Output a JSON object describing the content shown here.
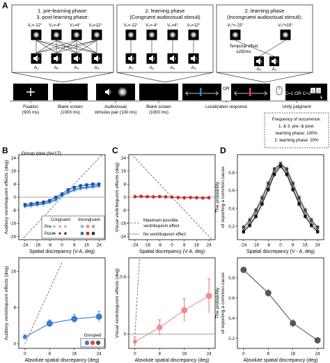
{
  "panel_a": {
    "letter": "A",
    "box1": {
      "title_lines": [
        "1. pre-learning phase:",
        "3. post-learning phase:"
      ],
      "v_labels": [
        "V₁=-12°",
        "V₂=-4°",
        "V₃=4°",
        "V₄=12°"
      ],
      "a_labels": [
        "A₁",
        "A₂",
        "A₃",
        "A₄"
      ]
    },
    "box2": {
      "title_lines": [
        "2. learning phase",
        "(Congruent audiovisual stimuli)"
      ],
      "v_labels": [
        "V₁=-12°",
        "V₂=-4°",
        "V₃=4°",
        "V₄=12°"
      ],
      "a_labels": [
        "A₁",
        "A₂",
        "A₃",
        "A₄"
      ]
    },
    "box3": {
      "title_lines": [
        "2. learning phase",
        "(Incongruent audiovisual stimuli):"
      ],
      "v_labels": [
        "V₁*=-15°",
        "V₄*=15°"
      ],
      "offset_lines": [
        "Temporal offset",
        "±250ms"
      ],
      "a_labels": [
        "A₂",
        "A₃"
      ]
    },
    "timeline": {
      "or_label": "OR",
      "unity_options": "C=1 OR C=2",
      "key_labels": [
        "1",
        "2"
      ],
      "steps": [
        {
          "lines": [
            "Fixation",
            "(500 ms)"
          ]
        },
        {
          "lines": [
            "Blank screen",
            "(1000 ms)"
          ]
        },
        {
          "lines": [
            "Audiovisual",
            "stimulus pair (100 ms)"
          ]
        },
        {
          "lines": [
            "Blank screen",
            "(1000 ms)"
          ]
        },
        {
          "lines": [
            "Localization response"
          ]
        },
        {
          "lines": [
            "Unity judgment"
          ]
        }
      ],
      "freq_lines": [
        "Frequency of occurrence:",
        "1. & 3. pre- & post-",
        "learning phase: 100%",
        "2. learning phase: 20%"
      ]
    }
  },
  "panel_b": {
    "letter": "B",
    "group_label": "Group data (N=17)",
    "legend": {
      "congruent": "Congruent",
      "incongruent": "Incongruent",
      "pre": "Pre-",
      "post": "Post-"
    },
    "grouped_label": "Grouped"
  },
  "panel_c": {
    "letter": "C",
    "legend_lines": [
      "Maximum possible",
      "ventriloquism effect",
      "No ventriloquism effect"
    ]
  },
  "panel_d": {
    "letter": "D"
  },
  "colors": {
    "blue": "#3a7bd5",
    "red": "#e8474c",
    "gray": "#555555",
    "black": "#111111"
  },
  "chart_data": [
    {
      "id": "B-top",
      "type": "line",
      "xlabel": "Spatial discrepancy (V-A, deg)",
      "ylabel": "Auditory ventriloquism effects (deg)",
      "xlim": [
        -28,
        28
      ],
      "ylim": [
        -26,
        26
      ],
      "x_ticks": [
        "-24",
        "-16",
        "-8",
        "0",
        "8",
        "16",
        "24"
      ],
      "y_ticks": [
        "24",
        "16",
        "8",
        "0",
        "-8",
        "-16",
        "-24"
      ],
      "x": [
        -24,
        -20,
        -16,
        -12,
        -8,
        -4,
        0,
        4,
        8,
        12,
        16,
        20,
        24
      ],
      "series": [
        {
          "values": [
            -6,
            -5.5,
            -5,
            -4.5,
            -3.5,
            -2,
            0.5,
            2.5,
            4,
            5,
            5.5,
            6,
            6.5
          ]
        },
        {
          "values": [
            -5,
            -4.5,
            -4,
            -3.5,
            -2.5,
            -1,
            1,
            3.5,
            5,
            6,
            6.5,
            7,
            7.5
          ]
        },
        {
          "values": [
            -5.5,
            -5,
            -4.5,
            -4,
            -3,
            -1.5,
            1,
            3,
            4.5,
            5.5,
            6,
            6.5,
            7
          ]
        },
        {
          "values": [
            -4.5,
            -4,
            -3.5,
            -3,
            -2,
            0,
            2,
            4.5,
            6,
            7,
            7.5,
            8,
            8
          ]
        }
      ]
    },
    {
      "id": "B-bottom",
      "type": "line",
      "xlabel": "Absolute spatial discrepancy (deg)",
      "ylabel": "Auditory ventriloquism effects (deg)",
      "xlim": [
        -2,
        26
      ],
      "ylim": [
        -1,
        19
      ],
      "x_ticks": [
        "0",
        "8",
        "16",
        "24"
      ],
      "y_ticks": [
        "16",
        "8",
        "0"
      ],
      "x": [
        0,
        8,
        16,
        24
      ],
      "values": [
        1.5,
        4.5,
        5.5,
        6
      ],
      "errors": [
        0.5,
        0.8,
        1.0,
        1.2
      ]
    },
    {
      "id": "C-top",
      "type": "line",
      "xlabel": "Spatial discrepancy (V-A, deg)",
      "ylabel": "Visual ventriloquism effects (deg)",
      "xlim": [
        -28,
        28
      ],
      "ylim": [
        -26,
        26
      ],
      "x_ticks": [
        "-24",
        "-16",
        "-8",
        "0",
        "8",
        "16",
        "24"
      ],
      "y_ticks": [
        "24",
        "16",
        "8",
        "0",
        "-8",
        "-16",
        "-24"
      ],
      "x": [
        -24,
        -20,
        -16,
        -12,
        -8,
        -4,
        0,
        4,
        8,
        12,
        16,
        20,
        24
      ],
      "series": [
        {
          "values": [
            0.5,
            0.3,
            0.5,
            0.3,
            0.2,
            0.3,
            0,
            -0.3,
            -0.2,
            -0.3,
            -0.5,
            -0.3,
            -0.5
          ]
        },
        {
          "values": [
            0.3,
            0.5,
            0.3,
            0.2,
            0.4,
            0.2,
            0,
            -0.2,
            -0.4,
            -0.2,
            -0.3,
            -0.5,
            -0.3
          ]
        }
      ]
    },
    {
      "id": "C-bottom",
      "type": "line",
      "xlabel": "Absolute spatial discrepancy (deg)",
      "ylabel": "Visual ventriloquism effects (deg)",
      "xlim": [
        -2,
        26
      ],
      "ylim": [
        -0.15,
        0.8
      ],
      "x_ticks": [
        "0",
        "8",
        "16",
        "24"
      ],
      "y_ticks": [
        "0.6",
        "0"
      ],
      "x": [
        0,
        8,
        16,
        24
      ],
      "values": [
        -0.08,
        0.07,
        0.25,
        0.4
      ],
      "errors": [
        0.05,
        0.08,
        0.12,
        0.18
      ]
    },
    {
      "id": "D-top",
      "type": "line",
      "xlabel": "Spatial discrepancy (V - A, deg)",
      "ylabel": "The probability of reporting a common cause",
      "xlim": [
        -28,
        28
      ],
      "ylim": [
        0.05,
        1.0
      ],
      "x_ticks": [
        "-24",
        "-16",
        "-8",
        "0",
        "8",
        "16",
        "24"
      ],
      "y_ticks": [
        "0.8",
        "0.6",
        "0.4",
        "0.2"
      ],
      "x": [
        -24,
        -20,
        -16,
        -12,
        -8,
        -4,
        0,
        4,
        8,
        12,
        16,
        20,
        24
      ],
      "series": [
        {
          "values": [
            0.15,
            0.22,
            0.33,
            0.47,
            0.63,
            0.8,
            0.88,
            0.8,
            0.63,
            0.47,
            0.33,
            0.22,
            0.15
          ]
        },
        {
          "values": [
            0.17,
            0.25,
            0.36,
            0.5,
            0.66,
            0.82,
            0.89,
            0.82,
            0.66,
            0.5,
            0.36,
            0.25,
            0.17
          ]
        },
        {
          "values": [
            0.19,
            0.27,
            0.38,
            0.52,
            0.68,
            0.84,
            0.9,
            0.84,
            0.68,
            0.52,
            0.38,
            0.27,
            0.19
          ]
        },
        {
          "values": [
            0.14,
            0.21,
            0.31,
            0.45,
            0.61,
            0.78,
            0.87,
            0.78,
            0.61,
            0.45,
            0.31,
            0.21,
            0.14
          ]
        }
      ]
    },
    {
      "id": "D-bottom",
      "type": "line",
      "xlabel": "Absolute spatial discrepancy (deg)",
      "ylabel": "The probability of reporting a common cause",
      "xlim": [
        -2,
        26
      ],
      "ylim": [
        0.1,
        1.0
      ],
      "x_ticks": [
        "0",
        "8",
        "16",
        "24"
      ],
      "y_ticks": [
        "0.8",
        "0.6",
        "0.4",
        "0.2"
      ],
      "x": [
        0,
        8,
        16,
        24
      ],
      "values": [
        0.88,
        0.65,
        0.35,
        0.18
      ],
      "errors": [
        0.03,
        0.04,
        0.04,
        0.03
      ]
    }
  ]
}
